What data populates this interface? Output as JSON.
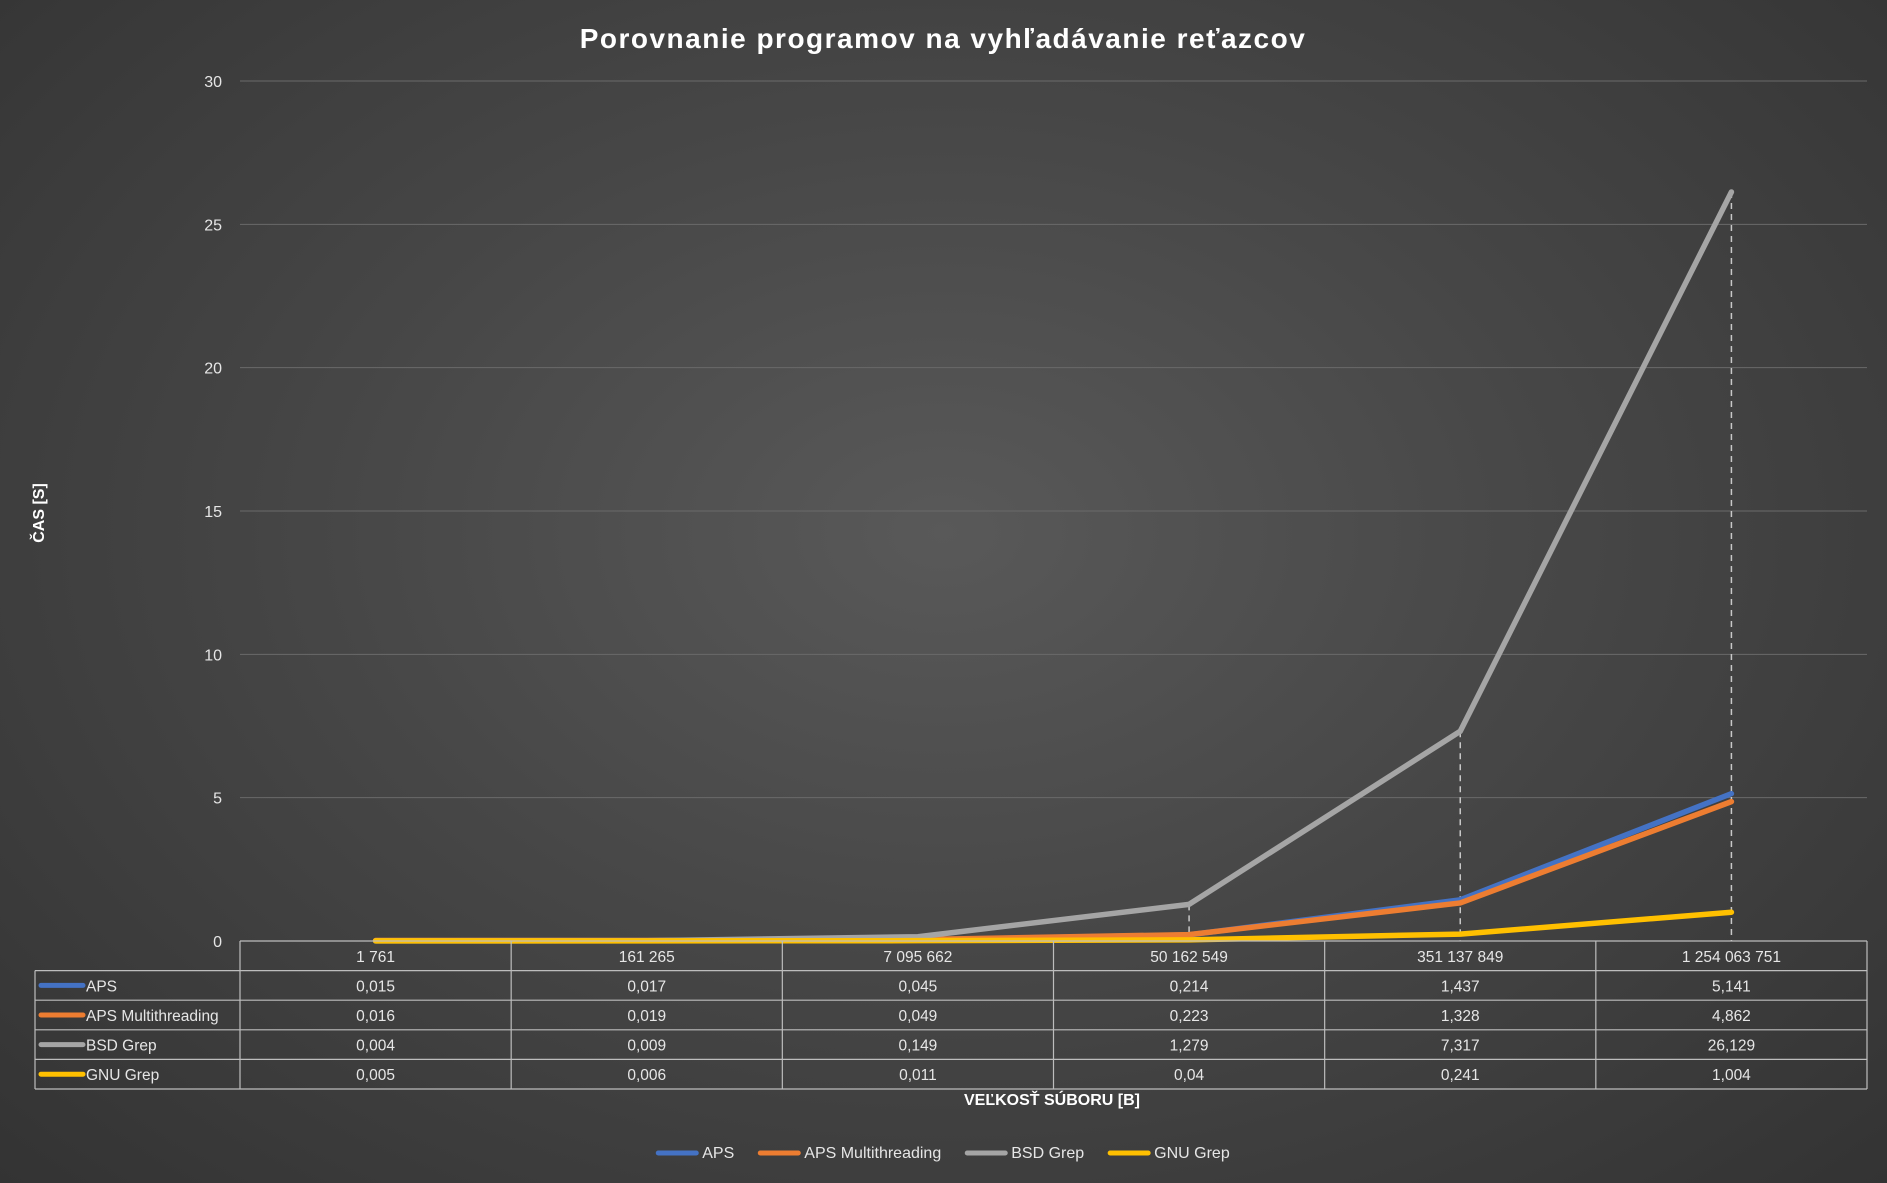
{
  "chart_data": {
    "type": "line",
    "title": "Porovnanie programov na vyhľadávanie reťazcov",
    "xlabel": "VEĽKOSŤ SÚBORU [B]",
    "ylabel": "ČAS [S]",
    "ylim": [
      0,
      30
    ],
    "yticks": [
      "0",
      "5",
      "10",
      "15",
      "20",
      "25",
      "30"
    ],
    "categories": [
      "1 761",
      "161 265",
      "7 095 662",
      "50 162 549",
      "351 137 849",
      "1 254 063 751"
    ],
    "series": [
      {
        "name": "APS",
        "color": "#4472C4",
        "values": [
          0.015,
          0.017,
          0.045,
          0.214,
          1.437,
          5.141
        ],
        "labels": [
          "0,015",
          "0,017",
          "0,045",
          "0,214",
          "1,437",
          "5,141"
        ]
      },
      {
        "name": "APS Multithreading",
        "color": "#ED7D31",
        "values": [
          0.016,
          0.019,
          0.049,
          0.223,
          1.328,
          4.862
        ],
        "labels": [
          "0,016",
          "0,019",
          "0,049",
          "0,223",
          "1,328",
          "4,862"
        ]
      },
      {
        "name": "BSD Grep",
        "color": "#A5A5A5",
        "values": [
          0.004,
          0.009,
          0.149,
          1.279,
          7.317,
          26.129
        ],
        "labels": [
          "0,004",
          "0,009",
          "0,149",
          "1,279",
          "7,317",
          "26,129"
        ]
      },
      {
        "name": "GNU Grep",
        "color": "#FFC000",
        "values": [
          0.005,
          0.006,
          0.011,
          0.04,
          0.241,
          1.004
        ],
        "labels": [
          "0,005",
          "0,006",
          "0,011",
          "0,04",
          "0,241",
          "1,004"
        ]
      }
    ],
    "grid": true,
    "drop_lines": true,
    "data_table": true,
    "legend_position": "bottom"
  }
}
